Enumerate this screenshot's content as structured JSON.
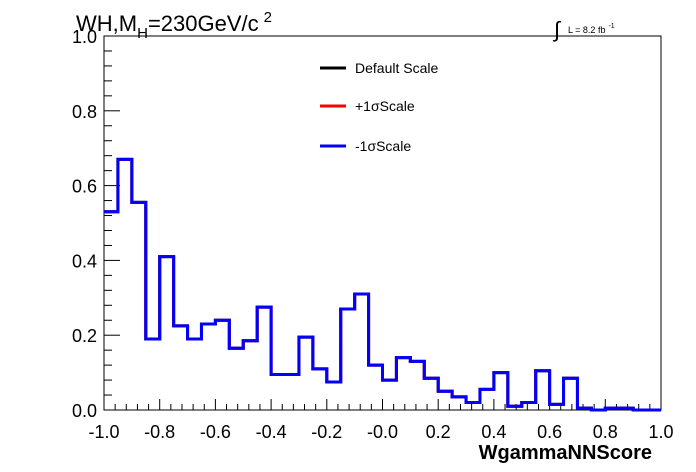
{
  "chart_data": {
    "type": "line",
    "style": "step-histogram",
    "title_main": "WH,M",
    "title_sub": "H",
    "title_rest": "=230GeV/c",
    "title_sup": "2",
    "lumi_symbol": "∫",
    "lumi_text": "L = 8.2 fb",
    "lumi_sup": "-1",
    "xlabel": "WgammaNNScore",
    "ylabel": "",
    "xlim": [
      -1.0,
      1.0
    ],
    "ylim": [
      0.0,
      1.0
    ],
    "x_ticks": [
      "-1.0",
      "-0.8",
      "-0.6",
      "-0.4",
      "-0.2",
      "-0.0",
      "0.2",
      "0.4",
      "0.6",
      "0.8",
      "1.0"
    ],
    "y_ticks": [
      "0.0",
      "0.2",
      "0.4",
      "0.6",
      "0.8",
      "1.0"
    ],
    "legend_position": "top-center",
    "grid": false,
    "bin_edges": [
      -1.0,
      -0.95,
      -0.9,
      -0.85,
      -0.8,
      -0.75,
      -0.7,
      -0.65,
      -0.6,
      -0.55,
      -0.5,
      -0.45,
      -0.4,
      -0.35,
      -0.3,
      -0.25,
      -0.2,
      -0.15,
      -0.1,
      -0.05,
      0.0,
      0.05,
      0.1,
      0.15,
      0.2,
      0.25,
      0.3,
      0.35,
      0.4,
      0.45,
      0.5,
      0.55,
      0.6,
      0.65,
      0.7,
      0.75,
      0.8,
      0.85,
      0.9,
      0.95,
      1.0
    ],
    "series": [
      {
        "name": "Default Scale",
        "color": "#000000",
        "values": [
          0.53,
          0.67,
          0.555,
          0.19,
          0.41,
          0.225,
          0.19,
          0.23,
          0.24,
          0.165,
          0.185,
          0.275,
          0.095,
          0.095,
          0.195,
          0.11,
          0.075,
          0.27,
          0.31,
          0.12,
          0.08,
          0.14,
          0.13,
          0.085,
          0.05,
          0.035,
          0.02,
          0.055,
          0.1,
          0.01,
          0.02,
          0.105,
          0.015,
          0.085,
          0.005,
          0.0,
          0.005,
          0.005,
          0.0,
          0.0
        ]
      },
      {
        "name": "+1σScale",
        "color": "#ff0000",
        "values": [
          0.53,
          0.67,
          0.555,
          0.19,
          0.41,
          0.225,
          0.19,
          0.23,
          0.24,
          0.165,
          0.185,
          0.275,
          0.095,
          0.095,
          0.195,
          0.11,
          0.075,
          0.27,
          0.31,
          0.12,
          0.08,
          0.14,
          0.13,
          0.085,
          0.05,
          0.035,
          0.02,
          0.055,
          0.1,
          0.01,
          0.02,
          0.105,
          0.015,
          0.085,
          0.005,
          0.0,
          0.005,
          0.005,
          0.0,
          0.0
        ]
      },
      {
        "name": "-1σScale",
        "color": "#0000ff",
        "values": [
          0.53,
          0.67,
          0.555,
          0.19,
          0.41,
          0.225,
          0.19,
          0.23,
          0.24,
          0.165,
          0.185,
          0.275,
          0.095,
          0.095,
          0.195,
          0.11,
          0.075,
          0.27,
          0.31,
          0.12,
          0.08,
          0.14,
          0.13,
          0.085,
          0.05,
          0.035,
          0.02,
          0.055,
          0.1,
          0.01,
          0.02,
          0.105,
          0.015,
          0.085,
          0.005,
          0.0,
          0.005,
          0.005,
          0.0,
          0.0
        ]
      }
    ]
  }
}
